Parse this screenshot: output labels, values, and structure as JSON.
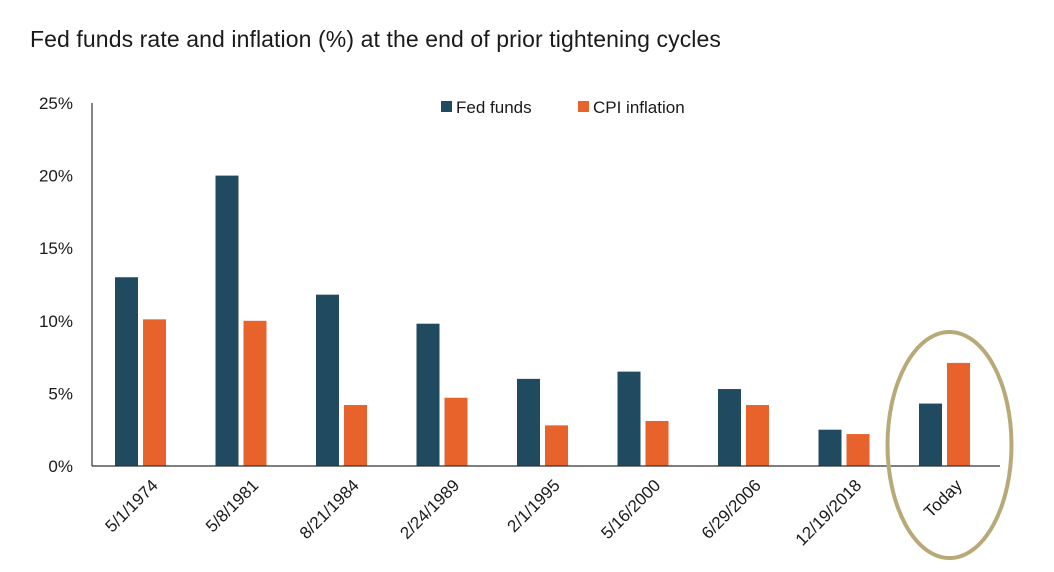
{
  "title": "Fed funds rate and inflation (%) at the end of prior tightening cycles",
  "colors": {
    "fed_funds": "#1f4a5f",
    "cpi": "#e8622c",
    "highlight": "#b8aa78",
    "axis": "#333333"
  },
  "chart_data": {
    "type": "bar",
    "title": "Fed funds rate and inflation (%) at the end of prior tightening cycles",
    "xlabel": "",
    "ylabel": "",
    "categories": [
      "5/1/1974",
      "5/8/1981",
      "8/21/1984",
      "2/24/1989",
      "2/1/1995",
      "5/16/2000",
      "6/29/2006",
      "12/19/2018",
      "Today"
    ],
    "series": [
      {
        "name": "Fed funds",
        "values": [
          13.0,
          20.0,
          11.8,
          9.8,
          6.0,
          6.5,
          5.3,
          2.5,
          4.3
        ]
      },
      {
        "name": "CPI inflation",
        "values": [
          10.1,
          10.0,
          4.2,
          4.7,
          2.8,
          3.1,
          4.2,
          2.2,
          7.1
        ]
      }
    ],
    "ylim": [
      0,
      25
    ],
    "yticks": [
      0,
      5,
      10,
      15,
      20,
      25
    ],
    "ytick_labels": [
      "0%",
      "5%",
      "10%",
      "15%",
      "20%",
      "25%"
    ],
    "legend_position": "top-center",
    "grid": false,
    "highlighted_category": "Today"
  }
}
